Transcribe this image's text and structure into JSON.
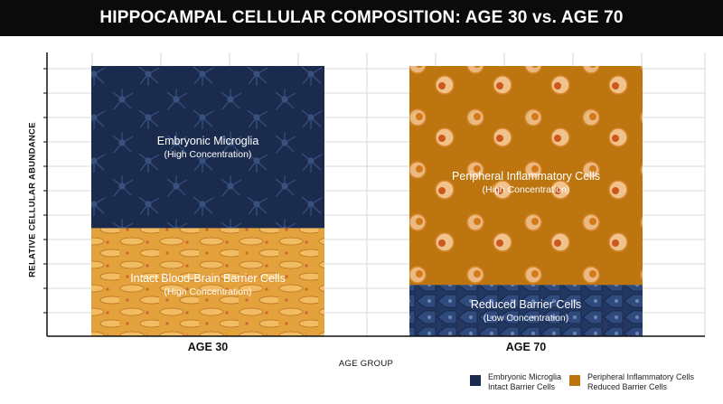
{
  "title": "HIPPOCAMPAL CELLULAR COMPOSITION: AGE 30 vs. AGE 70",
  "colors": {
    "microglia": "#1b2b4d",
    "barrier": "#e4a23c",
    "inflammatory": "#bd7510",
    "reduced_barrier": "#223761",
    "grid": "#d9d9d9"
  },
  "chart_data": {
    "type": "bar",
    "stacked": true,
    "xlabel": "AGE GROUP",
    "ylabel": "RELATIVE CELLULAR ABUNDANCE",
    "categories": [
      "AGE 30",
      "AGE 70"
    ],
    "ylim": [
      0,
      100
    ],
    "grid": true,
    "legend_position": "bottom-right",
    "series": [
      {
        "key": "microglia",
        "values": [
          60,
          0
        ],
        "labels": [
          "Embryonic Microglia",
          ""
        ],
        "sublabels": [
          "(High Concentration)",
          ""
        ]
      },
      {
        "key": "barrier",
        "values": [
          40,
          0
        ],
        "labels": [
          "Intact Blood-Brain Barrier Cells",
          ""
        ],
        "sublabels": [
          "(High Concentration)",
          ""
        ]
      },
      {
        "key": "inflammatory",
        "values": [
          0,
          81
        ],
        "labels": [
          "",
          "Peripheral Inflammatory Cells"
        ],
        "sublabels": [
          "",
          "(High Concentration)"
        ]
      },
      {
        "key": "reduced_barrier",
        "values": [
          0,
          19
        ],
        "labels": [
          "",
          "Reduced Barrier Cells"
        ],
        "sublabels": [
          "",
          "(Low Concentration)"
        ]
      }
    ]
  },
  "legend": [
    {
      "key": "microglia",
      "line1": "Embryonic Microglia",
      "line2": "Intact Barrier Cells"
    },
    {
      "key": "inflammatory",
      "line1": "Peripheral Inflammatory Cells",
      "line2": "Reduced Barrier Cells"
    }
  ]
}
